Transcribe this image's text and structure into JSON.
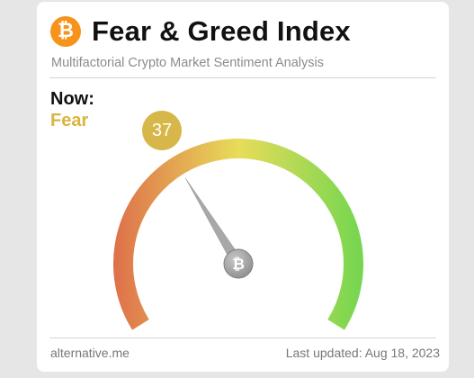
{
  "header": {
    "logo_icon": "bitcoin-icon",
    "logo_symbol": "₿",
    "title": "Fear & Greed Index",
    "subtitle": "Multifactorial Crypto Market Sentiment Analysis"
  },
  "current": {
    "now_label": "Now:",
    "classification": "Fear",
    "value": "37"
  },
  "gauge": {
    "min": 0,
    "max": 100,
    "value": 37,
    "hub_symbol": "₿"
  },
  "footer": {
    "source": "alternative.me",
    "last_updated": "Last updated: Aug 18, 2023"
  },
  "colors": {
    "btc_orange": "#f7931a",
    "fear_gold": "#d8b53f",
    "badge_gold": "#d7b64a",
    "gauge_red": "#de6f4a",
    "gauge_yellow": "#e8dc5a",
    "gauge_green": "#72d64f"
  }
}
